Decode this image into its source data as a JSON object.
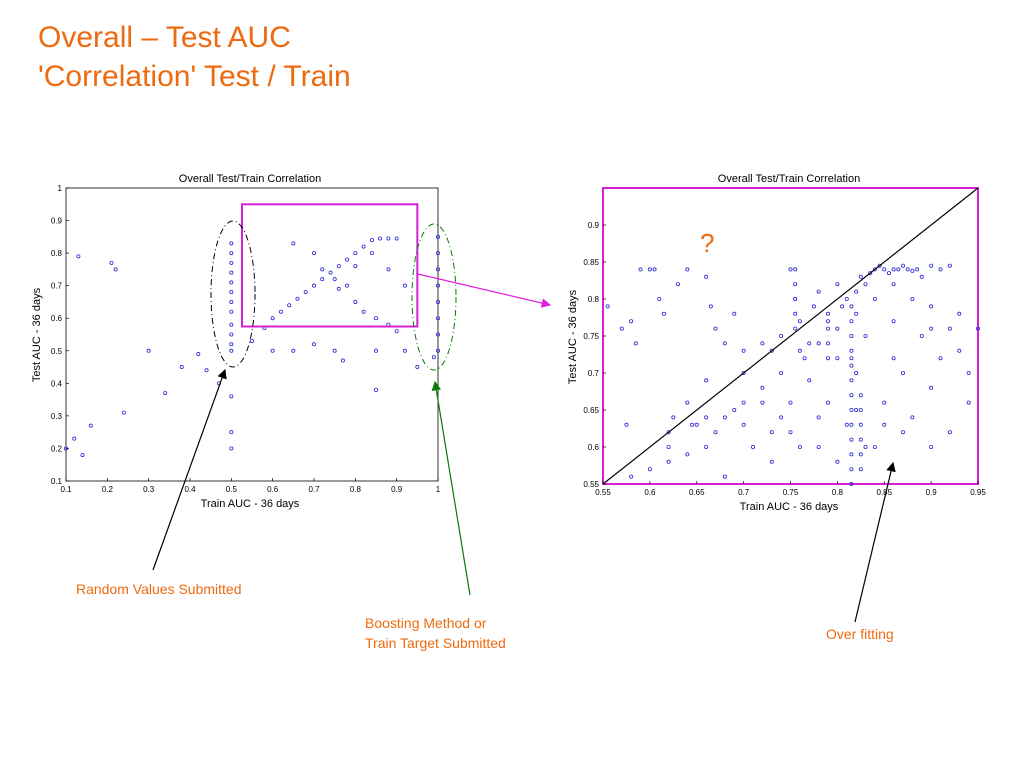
{
  "slide": {
    "title_line1": "Overall – Test AUC",
    "title_line2": "'Correlation' Test / Train"
  },
  "annotations": {
    "random": "Random Values Submitted",
    "boosting_line1": "Boosting Method or",
    "boosting_line2": "Train Target Submitted",
    "overfitting": "Over fitting",
    "question": "?"
  },
  "colors": {
    "title": "#ee6a10",
    "annotation": "#ee6a10",
    "points": "#2b2bd6",
    "zoom_box": "#d61fd6",
    "arrow_black": "#000000",
    "arrow_green": "#0a7a0a",
    "arrow_magenta": "#e020e0"
  },
  "chart_data": [
    {
      "type": "scatter",
      "title": "Overall Test/Train Correlation",
      "xlabel": "Train AUC - 36 days",
      "ylabel": "Test AUC - 36 days",
      "xlim": [
        0.1,
        1.0
      ],
      "ylim": [
        0.1,
        1.0
      ],
      "xticks": [
        "0.1",
        "0.2",
        "0.3",
        "0.4",
        "0.5",
        "0.6",
        "0.7",
        "0.8",
        "0.9",
        "1"
      ],
      "yticks": [
        "0.1",
        "0.2",
        "0.3",
        "0.4",
        "0.5",
        "0.6",
        "0.7",
        "0.8",
        "0.9",
        "1"
      ],
      "zoom_region": {
        "x": [
          0.55,
          0.95
        ],
        "y": [
          0.55,
          0.95
        ]
      },
      "points": [
        [
          0.1,
          0.2
        ],
        [
          0.12,
          0.23
        ],
        [
          0.14,
          0.18
        ],
        [
          0.16,
          0.27
        ],
        [
          0.13,
          0.79
        ],
        [
          0.21,
          0.77
        ],
        [
          0.22,
          0.75
        ],
        [
          0.24,
          0.31
        ],
        [
          0.3,
          0.5
        ],
        [
          0.34,
          0.37
        ],
        [
          0.38,
          0.45
        ],
        [
          0.42,
          0.49
        ],
        [
          0.44,
          0.44
        ],
        [
          0.47,
          0.4
        ],
        [
          0.5,
          0.83
        ],
        [
          0.5,
          0.8
        ],
        [
          0.5,
          0.77
        ],
        [
          0.5,
          0.74
        ],
        [
          0.5,
          0.71
        ],
        [
          0.5,
          0.68
        ],
        [
          0.5,
          0.65
        ],
        [
          0.5,
          0.62
        ],
        [
          0.5,
          0.58
        ],
        [
          0.5,
          0.55
        ],
        [
          0.5,
          0.52
        ],
        [
          0.5,
          0.5
        ],
        [
          0.5,
          0.36
        ],
        [
          0.5,
          0.25
        ],
        [
          0.5,
          0.2
        ],
        [
          0.55,
          0.53
        ],
        [
          0.58,
          0.57
        ],
        [
          0.6,
          0.6
        ],
        [
          0.62,
          0.62
        ],
        [
          0.64,
          0.64
        ],
        [
          0.66,
          0.66
        ],
        [
          0.68,
          0.68
        ],
        [
          0.7,
          0.7
        ],
        [
          0.72,
          0.72
        ],
        [
          0.74,
          0.74
        ],
        [
          0.76,
          0.76
        ],
        [
          0.78,
          0.78
        ],
        [
          0.8,
          0.8
        ],
        [
          0.82,
          0.82
        ],
        [
          0.84,
          0.84
        ],
        [
          0.86,
          0.845
        ],
        [
          0.88,
          0.845
        ],
        [
          0.9,
          0.845
        ],
        [
          0.65,
          0.83
        ],
        [
          0.7,
          0.8
        ],
        [
          0.72,
          0.75
        ],
        [
          0.75,
          0.72
        ],
        [
          0.78,
          0.7
        ],
        [
          0.8,
          0.65
        ],
        [
          0.82,
          0.62
        ],
        [
          0.85,
          0.6
        ],
        [
          0.88,
          0.58
        ],
        [
          0.9,
          0.56
        ],
        [
          0.92,
          0.7
        ],
        [
          0.88,
          0.75
        ],
        [
          0.84,
          0.8
        ],
        [
          0.8,
          0.76
        ],
        [
          0.76,
          0.69
        ],
        [
          0.6,
          0.5
        ],
        [
          0.65,
          0.5
        ],
        [
          0.7,
          0.52
        ],
        [
          0.75,
          0.5
        ],
        [
          0.85,
          0.5
        ],
        [
          0.92,
          0.5
        ],
        [
          0.95,
          0.45
        ],
        [
          0.85,
          0.38
        ],
        [
          0.77,
          0.47
        ],
        [
          1.0,
          0.85
        ],
        [
          1.0,
          0.8
        ],
        [
          1.0,
          0.75
        ],
        [
          1.0,
          0.7
        ],
        [
          1.0,
          0.65
        ],
        [
          1.0,
          0.6
        ],
        [
          1.0,
          0.55
        ],
        [
          1.0,
          0.5
        ],
        [
          0.99,
          0.48
        ]
      ]
    },
    {
      "type": "scatter",
      "title": "Overall Test/Train Correlation",
      "xlabel": "Train AUC - 36 days",
      "ylabel": "Test AUC - 36 days",
      "xlim": [
        0.55,
        0.95
      ],
      "ylim": [
        0.55,
        0.95
      ],
      "xticks": [
        "0.55",
        "0.6",
        "0.65",
        "0.7",
        "0.75",
        "0.8",
        "0.85",
        "0.9",
        "0.95"
      ],
      "yticks": [
        "0.55",
        "0.6",
        "0.65",
        "0.7",
        "0.75",
        "0.8",
        "0.85",
        "0.9"
      ],
      "diagonal": [
        [
          0.55,
          0.55
        ],
        [
          0.95,
          0.95
        ]
      ],
      "points": [
        [
          0.555,
          0.79
        ],
        [
          0.57,
          0.76
        ],
        [
          0.575,
          0.63
        ],
        [
          0.58,
          0.77
        ],
        [
          0.585,
          0.74
        ],
        [
          0.59,
          0.84
        ],
        [
          0.6,
          0.84
        ],
        [
          0.605,
          0.84
        ],
        [
          0.61,
          0.8
        ],
        [
          0.615,
          0.78
        ],
        [
          0.62,
          0.62
        ],
        [
          0.625,
          0.64
        ],
        [
          0.63,
          0.82
        ],
        [
          0.64,
          0.84
        ],
        [
          0.645,
          0.63
        ],
        [
          0.65,
          0.63
        ],
        [
          0.66,
          0.83
        ],
        [
          0.665,
          0.79
        ],
        [
          0.67,
          0.76
        ],
        [
          0.68,
          0.64
        ],
        [
          0.69,
          0.78
        ],
        [
          0.7,
          0.7
        ],
        [
          0.72,
          0.74
        ],
        [
          0.73,
          0.73
        ],
        [
          0.74,
          0.75
        ],
        [
          0.75,
          0.84
        ],
        [
          0.755,
          0.8
        ],
        [
          0.76,
          0.77
        ],
        [
          0.765,
          0.72
        ],
        [
          0.77,
          0.74
        ],
        [
          0.775,
          0.79
        ],
        [
          0.78,
          0.81
        ],
        [
          0.79,
          0.77
        ],
        [
          0.8,
          0.82
        ],
        [
          0.805,
          0.79
        ],
        [
          0.81,
          0.8
        ],
        [
          0.815,
          0.72
        ],
        [
          0.82,
          0.81
        ],
        [
          0.825,
          0.83
        ],
        [
          0.83,
          0.82
        ],
        [
          0.835,
          0.835
        ],
        [
          0.84,
          0.84
        ],
        [
          0.845,
          0.845
        ],
        [
          0.85,
          0.84
        ],
        [
          0.855,
          0.835
        ],
        [
          0.86,
          0.84
        ],
        [
          0.865,
          0.84
        ],
        [
          0.87,
          0.845
        ],
        [
          0.875,
          0.84
        ],
        [
          0.88,
          0.838
        ],
        [
          0.885,
          0.84
        ],
        [
          0.89,
          0.83
        ],
        [
          0.9,
          0.845
        ],
        [
          0.91,
          0.84
        ],
        [
          0.92,
          0.845
        ],
        [
          0.7,
          0.66
        ],
        [
          0.72,
          0.68
        ],
        [
          0.74,
          0.7
        ],
        [
          0.76,
          0.73
        ],
        [
          0.78,
          0.74
        ],
        [
          0.8,
          0.76
        ],
        [
          0.82,
          0.78
        ],
        [
          0.84,
          0.8
        ],
        [
          0.86,
          0.82
        ],
        [
          0.88,
          0.8
        ],
        [
          0.9,
          0.79
        ],
        [
          0.92,
          0.76
        ],
        [
          0.94,
          0.7
        ],
        [
          0.93,
          0.78
        ],
        [
          0.91,
          0.72
        ],
        [
          0.89,
          0.75
        ],
        [
          0.87,
          0.7
        ],
        [
          0.85,
          0.66
        ],
        [
          0.83,
          0.6
        ],
        [
          0.81,
          0.63
        ],
        [
          0.79,
          0.66
        ],
        [
          0.77,
          0.69
        ],
        [
          0.75,
          0.66
        ],
        [
          0.73,
          0.62
        ],
        [
          0.71,
          0.6
        ],
        [
          0.69,
          0.65
        ],
        [
          0.67,
          0.62
        ],
        [
          0.66,
          0.6
        ],
        [
          0.64,
          0.59
        ],
        [
          0.62,
          0.58
        ],
        [
          0.6,
          0.57
        ],
        [
          0.58,
          0.56
        ],
        [
          0.68,
          0.56
        ],
        [
          0.73,
          0.58
        ],
        [
          0.76,
          0.6
        ],
        [
          0.8,
          0.58
        ],
        [
          0.84,
          0.6
        ],
        [
          0.88,
          0.64
        ],
        [
          0.9,
          0.68
        ],
        [
          0.86,
          0.72
        ],
        [
          0.82,
          0.7
        ],
        [
          0.78,
          0.64
        ],
        [
          0.74,
          0.64
        ],
        [
          0.7,
          0.63
        ],
        [
          0.66,
          0.64
        ],
        [
          0.8,
          0.72
        ],
        [
          0.83,
          0.75
        ],
        [
          0.86,
          0.77
        ],
        [
          0.9,
          0.76
        ],
        [
          0.93,
          0.73
        ],
        [
          0.95,
          0.76
        ],
        [
          0.94,
          0.66
        ],
        [
          0.92,
          0.62
        ],
        [
          0.9,
          0.6
        ],
        [
          0.87,
          0.62
        ],
        [
          0.85,
          0.63
        ],
        [
          0.82,
          0.65
        ],
        [
          0.78,
          0.6
        ],
        [
          0.75,
          0.62
        ],
        [
          0.72,
          0.66
        ],
        [
          0.7,
          0.73
        ],
        [
          0.68,
          0.74
        ],
        [
          0.66,
          0.69
        ],
        [
          0.64,
          0.66
        ],
        [
          0.62,
          0.6
        ],
        [
          0.815,
          0.55
        ],
        [
          0.815,
          0.57
        ],
        [
          0.815,
          0.59
        ],
        [
          0.815,
          0.61
        ],
        [
          0.815,
          0.63
        ],
        [
          0.815,
          0.65
        ],
        [
          0.815,
          0.67
        ],
        [
          0.815,
          0.69
        ],
        [
          0.815,
          0.71
        ],
        [
          0.815,
          0.73
        ],
        [
          0.815,
          0.75
        ],
        [
          0.815,
          0.77
        ],
        [
          0.815,
          0.79
        ],
        [
          0.825,
          0.57
        ],
        [
          0.825,
          0.59
        ],
        [
          0.825,
          0.61
        ],
        [
          0.825,
          0.63
        ],
        [
          0.825,
          0.65
        ],
        [
          0.825,
          0.67
        ],
        [
          0.755,
          0.76
        ],
        [
          0.755,
          0.78
        ],
        [
          0.755,
          0.8
        ],
        [
          0.755,
          0.82
        ],
        [
          0.755,
          0.84
        ],
        [
          0.79,
          0.72
        ],
        [
          0.79,
          0.74
        ],
        [
          0.79,
          0.76
        ],
        [
          0.79,
          0.78
        ]
      ]
    }
  ]
}
